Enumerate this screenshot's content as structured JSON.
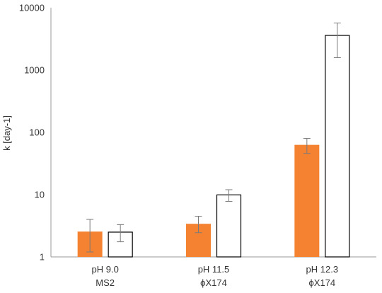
{
  "chart_data": {
    "type": "bar",
    "scale": "log",
    "ylabel": "k [day-1]",
    "ylim": [
      1,
      10000
    ],
    "y_ticks": [
      "1",
      "10",
      "100",
      "1000",
      "10000"
    ],
    "y_tick_values": [
      1,
      10,
      100,
      1000,
      10000
    ],
    "categories": [
      {
        "line1": "pH 9.0",
        "line2": "MS2"
      },
      {
        "line1": "pH 11.5",
        "line2": "ϕX174"
      },
      {
        "line1": "pH 12.3",
        "line2": "ϕX174"
      }
    ],
    "series": [
      {
        "style": "filled",
        "color": "#F58231",
        "values": [
          2.55,
          3.4,
          63
        ],
        "err_low": [
          1.2,
          2.45,
          46
        ],
        "err_high": [
          4.0,
          4.5,
          80
        ]
      },
      {
        "style": "outline",
        "color": "#000000",
        "values": [
          2.5,
          9.9,
          3600
        ],
        "err_low": [
          1.75,
          7.8,
          1580
        ],
        "err_high": [
          3.3,
          12.0,
          5700
        ]
      }
    ],
    "grid": false,
    "legend": "none"
  }
}
